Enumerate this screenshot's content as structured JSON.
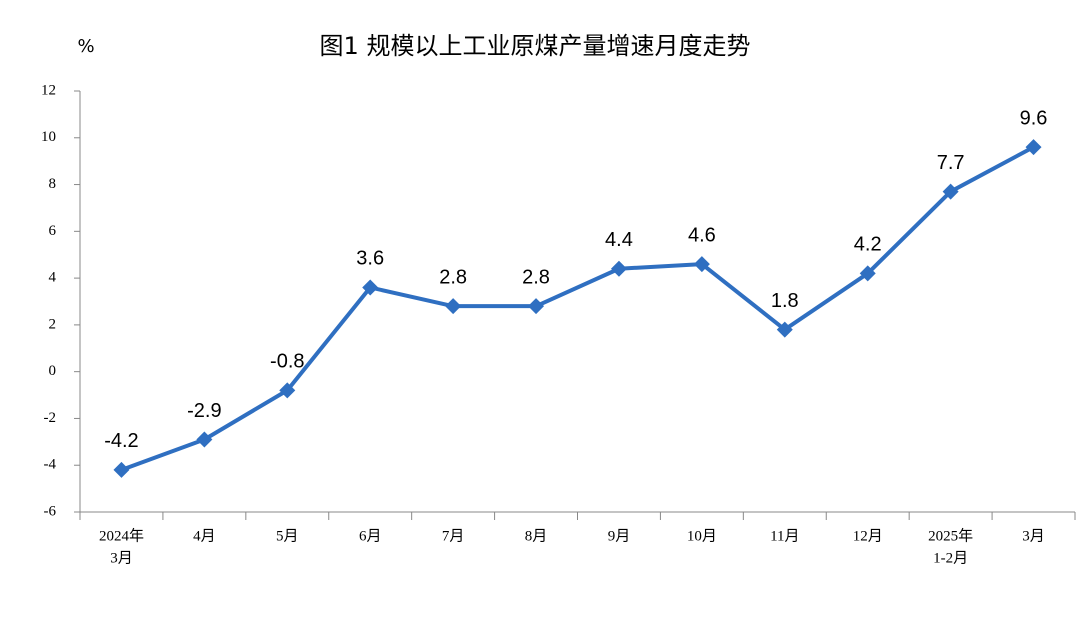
{
  "chart_data": {
    "type": "line",
    "title": "图1  规模以上工业原煤产量增速月度走势",
    "y_unit": "%",
    "categories": [
      [
        "2024年",
        "3月"
      ],
      [
        "4月"
      ],
      [
        "5月"
      ],
      [
        "6月"
      ],
      [
        "7月"
      ],
      [
        "8月"
      ],
      [
        "9月"
      ],
      [
        "10月"
      ],
      [
        "11月"
      ],
      [
        "12月"
      ],
      [
        "2025年",
        "1-2月"
      ],
      [
        "3月"
      ]
    ],
    "series": [
      {
        "name": "原煤产量增速",
        "color": "#2f6fc1",
        "values": [
          -4.2,
          -2.9,
          -0.8,
          3.6,
          2.8,
          2.8,
          4.4,
          4.6,
          1.8,
          4.2,
          7.7,
          9.6
        ]
      }
    ],
    "ylim": [
      -6,
      12
    ],
    "yticks": [
      -6,
      -4,
      -2,
      0,
      2,
      4,
      6,
      8,
      10,
      12
    ],
    "grid": false
  }
}
